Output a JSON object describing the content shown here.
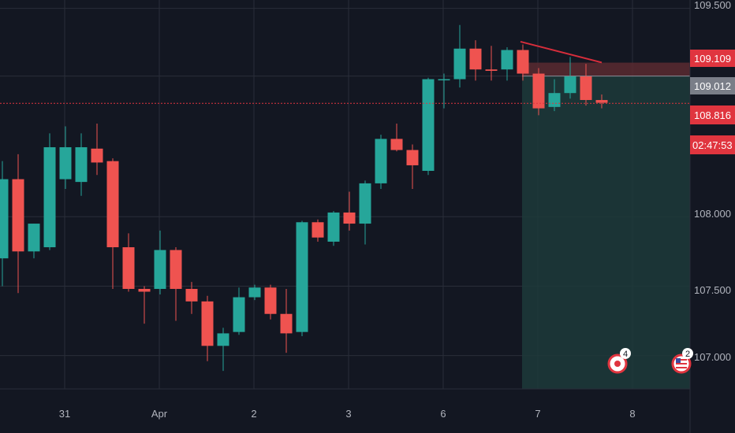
{
  "colors": {
    "background": "#131722",
    "grid": "#2a2e39",
    "up": "#26a69a",
    "down": "#ef5350",
    "axis_text": "#b2b5be",
    "position_zone": "#1d3a3a",
    "stop_zone": "#5a2a30",
    "trendline": "#d62d3b",
    "current_price_badge": "#e0353f",
    "entry_badge": "#7a7e88"
  },
  "price_axis": {
    "labels": [
      "109.500",
      "109.109",
      "109.012",
      "108.816",
      "108.000",
      "107.500",
      "107.000"
    ],
    "countdown": "02:47:53"
  },
  "time_axis": {
    "labels": [
      "31",
      "Apr",
      "2",
      "3",
      "6",
      "7",
      "8"
    ]
  },
  "events": {
    "earnings_count": "4",
    "us_event_count": "2"
  },
  "chart_data": {
    "type": "candlestick",
    "ylim": [
      106.76,
      109.56
    ],
    "y_ticks": [
      107.0,
      107.5,
      108.0,
      109.5
    ],
    "current_price": 108.816,
    "position": {
      "entry": 109.012,
      "stop": 109.109,
      "target": 106.76
    },
    "candles": [
      {
        "o": 107.7,
        "h": 108.4,
        "l": 107.5,
        "c": 108.27
      },
      {
        "o": 108.27,
        "h": 108.45,
        "l": 107.45,
        "c": 107.75
      },
      {
        "o": 107.75,
        "h": 107.95,
        "l": 107.7,
        "c": 107.95
      },
      {
        "o": 107.78,
        "h": 108.6,
        "l": 107.76,
        "c": 108.5
      },
      {
        "o": 108.27,
        "h": 108.65,
        "l": 108.2,
        "c": 108.5
      },
      {
        "o": 108.25,
        "h": 108.6,
        "l": 108.15,
        "c": 108.5
      },
      {
        "o": 108.49,
        "h": 108.67,
        "l": 108.3,
        "c": 108.39
      },
      {
        "o": 108.4,
        "h": 108.42,
        "l": 107.48,
        "c": 107.78
      },
      {
        "o": 107.78,
        "h": 107.88,
        "l": 107.46,
        "c": 107.48
      },
      {
        "o": 107.48,
        "h": 107.5,
        "l": 107.23,
        "c": 107.46
      },
      {
        "o": 107.48,
        "h": 107.9,
        "l": 107.44,
        "c": 107.76
      },
      {
        "o": 107.76,
        "h": 107.78,
        "l": 107.25,
        "c": 107.48
      },
      {
        "o": 107.48,
        "h": 107.53,
        "l": 107.3,
        "c": 107.39
      },
      {
        "o": 107.39,
        "h": 107.43,
        "l": 106.96,
        "c": 107.07
      },
      {
        "o": 107.07,
        "h": 107.2,
        "l": 106.89,
        "c": 107.16
      },
      {
        "o": 107.17,
        "h": 107.49,
        "l": 107.15,
        "c": 107.42
      },
      {
        "o": 107.42,
        "h": 107.51,
        "l": 107.4,
        "c": 107.49
      },
      {
        "o": 107.49,
        "h": 107.51,
        "l": 107.26,
        "c": 107.3
      },
      {
        "o": 107.3,
        "h": 107.48,
        "l": 107.02,
        "c": 107.16
      },
      {
        "o": 107.17,
        "h": 107.97,
        "l": 107.14,
        "c": 107.96
      },
      {
        "o": 107.96,
        "h": 107.98,
        "l": 107.82,
        "c": 107.85
      },
      {
        "o": 107.82,
        "h": 108.04,
        "l": 107.79,
        "c": 108.03
      },
      {
        "o": 108.03,
        "h": 108.18,
        "l": 107.9,
        "c": 107.95
      },
      {
        "o": 107.95,
        "h": 108.26,
        "l": 107.8,
        "c": 108.24
      },
      {
        "o": 108.24,
        "h": 108.59,
        "l": 108.2,
        "c": 108.56
      },
      {
        "o": 108.56,
        "h": 108.67,
        "l": 108.47,
        "c": 108.48
      },
      {
        "o": 108.48,
        "h": 108.52,
        "l": 108.2,
        "c": 108.37
      },
      {
        "o": 108.33,
        "h": 109.0,
        "l": 108.3,
        "c": 108.99
      },
      {
        "o": 108.99,
        "h": 109.03,
        "l": 108.78,
        "c": 108.99
      },
      {
        "o": 108.99,
        "h": 109.38,
        "l": 108.93,
        "c": 109.21
      },
      {
        "o": 109.21,
        "h": 109.27,
        "l": 108.98,
        "c": 109.06
      },
      {
        "o": 109.06,
        "h": 109.23,
        "l": 108.98,
        "c": 109.05
      },
      {
        "o": 109.06,
        "h": 109.22,
        "l": 108.98,
        "c": 109.2
      },
      {
        "o": 109.2,
        "h": 109.24,
        "l": 108.98,
        "c": 109.03
      },
      {
        "o": 109.03,
        "h": 109.07,
        "l": 108.73,
        "c": 108.78
      },
      {
        "o": 108.79,
        "h": 108.99,
        "l": 108.76,
        "c": 108.89
      },
      {
        "o": 108.89,
        "h": 109.15,
        "l": 108.85,
        "c": 109.01
      },
      {
        "o": 109.01,
        "h": 109.1,
        "l": 108.8,
        "c": 108.84
      },
      {
        "o": 108.84,
        "h": 108.88,
        "l": 108.78,
        "c": 108.82
      }
    ]
  }
}
